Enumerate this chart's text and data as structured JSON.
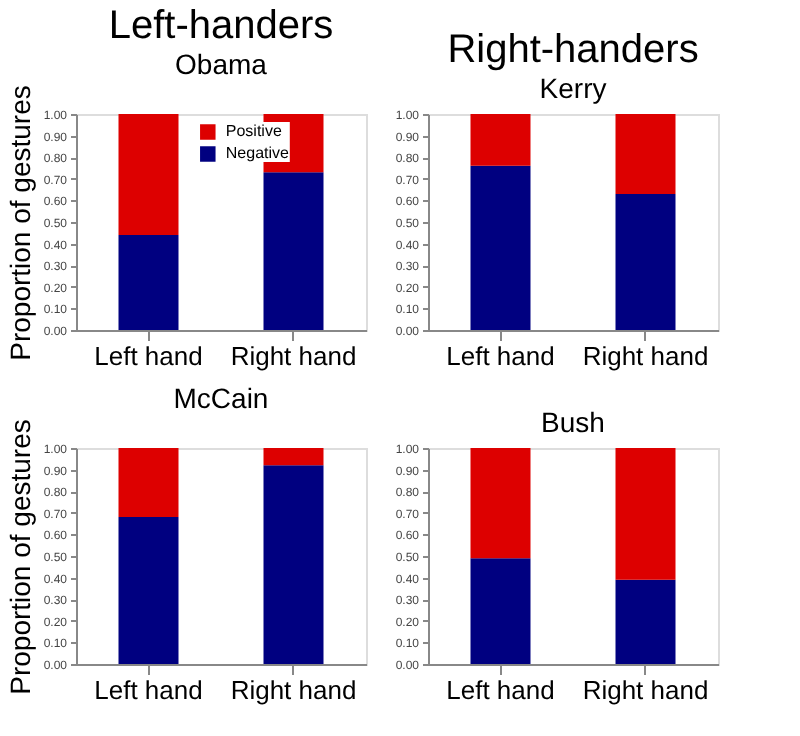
{
  "chart_data": [
    {
      "type": "bar",
      "title": "Left-handers",
      "subtitle": "Obama",
      "ylabel": "Proportion of gestures",
      "categories": [
        "Left hand",
        "Right hand"
      ],
      "stacked": true,
      "legend": "top",
      "grid": false,
      "series": [
        {
          "name": "Negative",
          "color": "#000080",
          "values": [
            0.44,
            0.73
          ]
        },
        {
          "name": "Positive",
          "color": "#dd0000",
          "values": [
            0.56,
            0.27
          ]
        }
      ],
      "ylim": [
        0,
        1
      ],
      "yticks": [
        {
          "value": 0,
          "label": "0.00"
        },
        {
          "value": 0.1,
          "label": "0.10"
        },
        {
          "value": 0.2,
          "label": "0.20"
        },
        {
          "value": 0.3,
          "label": "0.30"
        },
        {
          "value": 0.4,
          "label": "0.40"
        },
        {
          "value": 0.5,
          "label": "0.50"
        },
        {
          "value": 0.6,
          "label": "0.60"
        },
        {
          "value": 0.7,
          "label": "0.70"
        },
        {
          "value": 0.8,
          "label": "0.80"
        },
        {
          "value": 0.9,
          "label": "0.90"
        },
        {
          "value": 1,
          "label": "1.00"
        }
      ]
    },
    {
      "type": "bar",
      "title": "Right-handers",
      "subtitle": "Kerry",
      "categories": [
        "Left hand",
        "Right hand"
      ],
      "stacked": true,
      "legend": "top",
      "grid": false,
      "series": [
        {
          "name": "Negative",
          "color": "#000080",
          "values": [
            0.76,
            0.63
          ]
        },
        {
          "name": "Positive",
          "color": "#dd0000",
          "values": [
            0.24,
            0.37
          ]
        }
      ],
      "ylim": [
        0,
        1
      ],
      "yticks": [
        {
          "value": 0,
          "label": "0.00"
        },
        {
          "value": 0.1,
          "label": "0.10"
        },
        {
          "value": 0.2,
          "label": "0.20"
        },
        {
          "value": 0.3,
          "label": "0.30"
        },
        {
          "value": 0.4,
          "label": "0.40"
        },
        {
          "value": 0.5,
          "label": "0.50"
        },
        {
          "value": 0.6,
          "label": "0.60"
        },
        {
          "value": 0.7,
          "label": "0.70"
        },
        {
          "value": 0.8,
          "label": "0.80"
        },
        {
          "value": 0.9,
          "label": "0.90"
        },
        {
          "value": 1,
          "label": "1.00"
        }
      ]
    },
    {
      "type": "bar",
      "title": "McCain",
      "ylabel": "Proportion of gestures",
      "categories": [
        "Left hand",
        "Right hand"
      ],
      "stacked": true,
      "legend": "top",
      "grid": false,
      "series": [
        {
          "name": "Negative",
          "color": "#000080",
          "values": [
            0.68,
            0.92
          ]
        },
        {
          "name": "Positive",
          "color": "#dd0000",
          "values": [
            0.32,
            0.08
          ]
        }
      ],
      "ylim": [
        0,
        1
      ],
      "yticks": [
        {
          "value": 0,
          "label": "0.00"
        },
        {
          "value": 0.1,
          "label": "0.10"
        },
        {
          "value": 0.2,
          "label": "0.20"
        },
        {
          "value": 0.3,
          "label": "0.30"
        },
        {
          "value": 0.4,
          "label": "0.40"
        },
        {
          "value": 0.5,
          "label": "0.50"
        },
        {
          "value": 0.6,
          "label": "0.60"
        },
        {
          "value": 0.7,
          "label": "0.70"
        },
        {
          "value": 0.8,
          "label": "0.80"
        },
        {
          "value": 0.9,
          "label": "0.90"
        },
        {
          "value": 1,
          "label": "1.00"
        }
      ]
    },
    {
      "type": "bar",
      "title": "Bush",
      "categories": [
        "Left hand",
        "Right hand"
      ],
      "stacked": true,
      "legend": "top",
      "grid": false,
      "series": [
        {
          "name": "Negative",
          "color": "#000080",
          "values": [
            0.49,
            0.39
          ]
        },
        {
          "name": "Positive",
          "color": "#dd0000",
          "values": [
            0.51,
            0.61
          ]
        }
      ],
      "ylim": [
        0,
        1
      ],
      "yticks": [
        {
          "value": 0,
          "label": "0.00"
        },
        {
          "value": 0.1,
          "label": "0.10"
        },
        {
          "value": 0.2,
          "label": "0.20"
        },
        {
          "value": 0.3,
          "label": "0.30"
        },
        {
          "value": 0.4,
          "label": "0.40"
        },
        {
          "value": 0.5,
          "label": "0.50"
        },
        {
          "value": 0.6,
          "label": "0.60"
        },
        {
          "value": 0.7,
          "label": "0.70"
        },
        {
          "value": 0.8,
          "label": "0.80"
        },
        {
          "value": 0.9,
          "label": "0.90"
        },
        {
          "value": 1,
          "label": "1.00"
        }
      ]
    }
  ]
}
